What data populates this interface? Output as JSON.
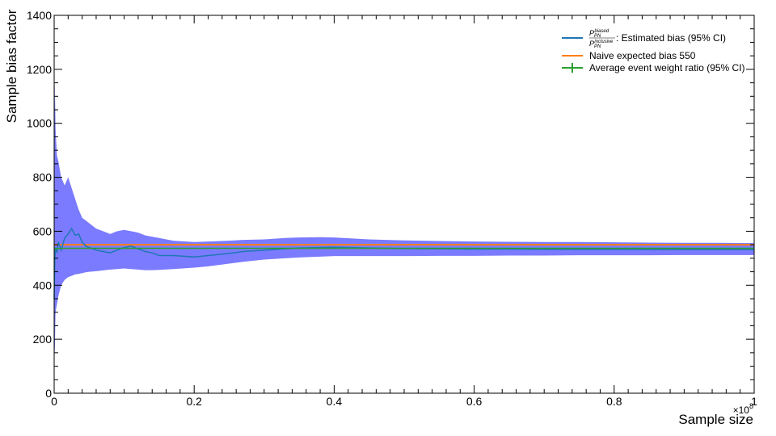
{
  "chart_data": {
    "type": "line",
    "xlabel": "Sample size",
    "ylabel": "Sample bias factor",
    "x_multiplier_label": "×10",
    "x_multiplier_exp": "8",
    "xlim": [
      0,
      1.0
    ],
    "ylim": [
      0,
      1400
    ],
    "x_ticks": [
      0,
      0.2,
      0.4,
      0.6,
      0.8,
      1.0
    ],
    "x_tick_labels": [
      "0",
      "0.2",
      "0.4",
      "0.6",
      "0.8",
      "1"
    ],
    "y_ticks": [
      0,
      200,
      400,
      600,
      800,
      1000,
      1200,
      1400
    ],
    "y_tick_labels": [
      "0",
      "200",
      "400",
      "600",
      "800",
      "1000",
      "1200",
      "1400"
    ],
    "grid": false,
    "legend_position": "top-right",
    "legend": [
      {
        "series": "estimated",
        "num": "P",
        "num_sub": "PN",
        "num_sup": "biased",
        "den": "P",
        "den_sub": "PN",
        "den_sup": "inclusive",
        "text": ": Estimated bias (95% CI)",
        "color": "#1f77b4",
        "marker": "line"
      },
      {
        "series": "naive",
        "text": "Naive expected bias 550",
        "color": "#ff7f0e",
        "marker": "line"
      },
      {
        "series": "weight_ratio",
        "text": "Average event weight ratio (95% CI)",
        "color": "#2ca02c",
        "marker": "errorbar"
      }
    ],
    "series": [
      {
        "key": "estimated",
        "color": "#1f77b4",
        "band_color": "#7b7bff",
        "x": [
          0.0,
          0.001,
          0.002,
          0.004,
          0.006,
          0.008,
          0.01,
          0.015,
          0.02,
          0.025,
          0.03,
          0.035,
          0.04,
          0.045,
          0.05,
          0.06,
          0.07,
          0.08,
          0.09,
          0.1,
          0.11,
          0.12,
          0.13,
          0.14,
          0.15,
          0.17,
          0.2,
          0.22,
          0.25,
          0.27,
          0.3,
          0.33,
          0.35,
          0.38,
          0.4,
          0.45,
          0.5,
          0.55,
          0.6,
          0.65,
          0.7,
          0.75,
          0.8,
          0.85,
          0.9,
          0.95,
          1.0
        ],
        "y": [
          350,
          500,
          540,
          520,
          560,
          545,
          530,
          575,
          590,
          610,
          585,
          590,
          560,
          545,
          540,
          530,
          525,
          520,
          530,
          540,
          545,
          535,
          525,
          520,
          510,
          510,
          505,
          510,
          518,
          525,
          530,
          535,
          538,
          540,
          541,
          538,
          536,
          535,
          534,
          534,
          533,
          533,
          533,
          532,
          532,
          532,
          532
        ],
        "upper": [
          900,
          1150,
          980,
          880,
          860,
          830,
          800,
          770,
          800,
          760,
          720,
          680,
          650,
          640,
          630,
          610,
          600,
          590,
          600,
          605,
          600,
          595,
          585,
          580,
          575,
          565,
          560,
          562,
          565,
          568,
          570,
          575,
          577,
          578,
          577,
          570,
          566,
          564,
          562,
          561,
          560,
          560,
          559,
          558,
          557,
          557,
          556
        ],
        "lower": [
          110,
          170,
          300,
          330,
          360,
          380,
          400,
          420,
          430,
          435,
          440,
          442,
          445,
          448,
          450,
          452,
          455,
          458,
          460,
          462,
          460,
          458,
          456,
          456,
          457,
          460,
          465,
          470,
          480,
          487,
          495,
          500,
          503,
          506,
          508,
          508,
          508,
          509,
          509,
          510,
          510,
          511,
          511,
          511,
          512,
          512,
          512
        ]
      },
      {
        "key": "naive",
        "color": "#ff7f0e",
        "x": [
          0,
          1.0
        ],
        "y": [
          550,
          550
        ]
      },
      {
        "key": "weight_ratio",
        "color": "#2ca02c",
        "x": [
          0.0,
          0.005,
          0.01,
          0.03,
          0.05,
          0.1,
          0.2,
          0.3,
          0.4,
          0.5,
          0.6,
          0.7,
          0.8,
          0.9,
          1.0
        ],
        "y": [
          534,
          536,
          537,
          537,
          537,
          537,
          537,
          537,
          537,
          537,
          537,
          537,
          537,
          537,
          537
        ]
      }
    ]
  }
}
